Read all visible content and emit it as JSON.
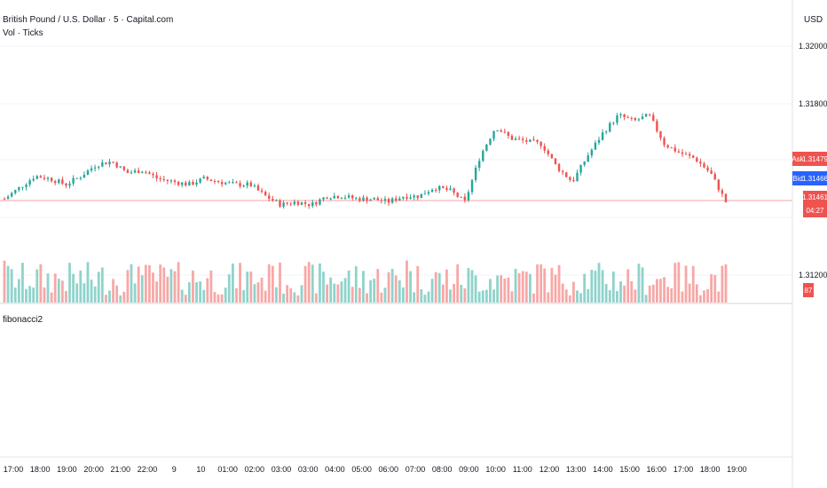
{
  "header": {
    "title": "British Pound / U.S. Dollar · 5 · Capital.com",
    "indicator": "Vol · Ticks",
    "currency": "USD"
  },
  "pane2": {
    "label": "fibonacci2"
  },
  "tags": {
    "ask_label": "Ask",
    "ask_price": "1.31479",
    "bid_label": "Bid",
    "bid_price": "1.31466",
    "last_price": "1.31461",
    "countdown": "04:27",
    "volume": "87"
  },
  "colors": {
    "up": "#26a69a",
    "down": "#ef5350",
    "vol_up": "#8fd3cb",
    "vol_down": "#f7a8a6",
    "bid": "#2962ff"
  },
  "chart_data": {
    "type": "candlestick",
    "y_ticks": [
      1.32,
      1.318,
      1.312
    ],
    "y_tick_labels": [
      "1.32000",
      "1.31800",
      "1.31200"
    ],
    "x_tick_labels": [
      "17:00",
      "18:00",
      "19:00",
      "20:00",
      "21:00",
      "22:00",
      "9",
      "10",
      "01:00",
      "02:00",
      "03:00",
      "03:00",
      "04:00",
      "05:00",
      "06:00",
      "07:00",
      "08:00",
      "09:00",
      "10:00",
      "11:00",
      "12:00",
      "13:00",
      "14:00",
      "15:00",
      "16:00",
      "17:00",
      "18:00",
      "19:00"
    ],
    "close_path": [
      1.3147,
      1.3151,
      1.3155,
      1.3154,
      1.3152,
      1.3155,
      1.3159,
      1.316,
      1.3156,
      1.3157,
      1.3154,
      1.3153,
      1.3152,
      1.3154,
      1.3153,
      1.3152,
      1.3152,
      1.3148,
      1.3145,
      1.3146,
      1.3145,
      1.3148,
      1.3148,
      1.3147,
      1.3147,
      1.3146,
      1.3148,
      1.3148,
      1.3151,
      1.315,
      1.3146,
      1.3162,
      1.3172,
      1.3168,
      1.3167,
      1.3166,
      1.3158,
      1.3153,
      1.3162,
      1.317,
      1.3176,
      1.3174,
      1.3176,
      1.3166,
      1.3163,
      1.3161,
      1.3156,
      1.3146
    ]
  }
}
